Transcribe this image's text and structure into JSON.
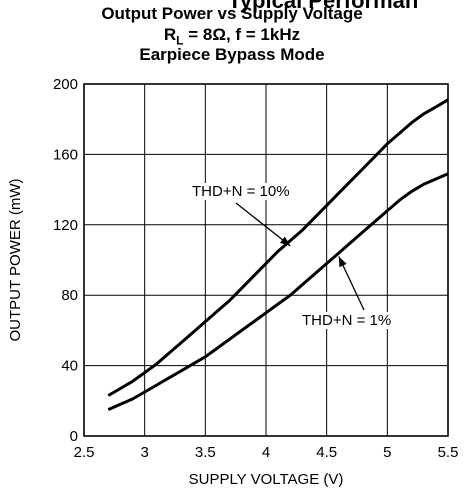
{
  "header": {
    "page_title": "Typical Performan",
    "chart_title_line1": "Output Power vs Supply Voltage",
    "chart_title_line2": "RL = 8Ω, f = 1kHz",
    "chart_title_line2_parts": {
      "r": "R",
      "sub": "L",
      "rest": " = 8Ω, f = 1kHz"
    },
    "chart_title_line3": "Earpiece Bypass Mode"
  },
  "chart_data": {
    "type": "line",
    "title": "Output Power vs Supply Voltage",
    "xlabel": "SUPPLY VOLTAGE (V)",
    "ylabel": "OUTPUT POWER (mW)",
    "xlim": [
      2.5,
      5.5
    ],
    "ylim": [
      0,
      200
    ],
    "xticks": [
      2.5,
      3,
      3.5,
      4,
      4.5,
      5,
      5.5
    ],
    "xtick_labels": [
      "2.5",
      "3",
      "3.5",
      "4",
      "4.5",
      "5",
      "5.5"
    ],
    "yticks": [
      0,
      40,
      80,
      120,
      160,
      200
    ],
    "ytick_labels": [
      "0",
      "40",
      "80",
      "120",
      "160",
      "200"
    ],
    "grid": true,
    "series": [
      {
        "name": "THD+N = 10%",
        "x": [
          2.7,
          2.8,
          2.9,
          3.0,
          3.1,
          3.2,
          3.3,
          3.4,
          3.5,
          3.6,
          3.7,
          3.8,
          3.9,
          4.0,
          4.1,
          4.2,
          4.3,
          4.4,
          4.5,
          4.6,
          4.7,
          4.8,
          4.9,
          5.0,
          5.1,
          5.2,
          5.3,
          5.4,
          5.5
        ],
        "y": [
          23,
          27,
          31,
          36,
          41,
          47,
          53,
          59,
          65,
          71,
          77,
          84,
          91,
          98,
          105,
          111,
          117,
          124,
          131,
          138,
          145,
          152,
          159,
          166,
          172,
          178,
          183,
          187,
          191
        ]
      },
      {
        "name": "THD+N = 1%",
        "x": [
          2.7,
          2.8,
          2.9,
          3.0,
          3.1,
          3.2,
          3.3,
          3.4,
          3.5,
          3.6,
          3.7,
          3.8,
          3.9,
          4.0,
          4.1,
          4.2,
          4.3,
          4.4,
          4.5,
          4.6,
          4.7,
          4.8,
          4.9,
          5.0,
          5.1,
          5.2,
          5.3,
          5.4,
          5.5
        ],
        "y": [
          15,
          18,
          21,
          25,
          29,
          33,
          37,
          41,
          45,
          50,
          55,
          60,
          65,
          70,
          75,
          80,
          86,
          92,
          98,
          104,
          110,
          116,
          122,
          128,
          134,
          139,
          143,
          146,
          149
        ]
      }
    ],
    "annotations": [
      {
        "text": "THD+N = 10%",
        "series": 0,
        "arrow_to": [
          4.2,
          108
        ]
      },
      {
        "text": "THD+N = 1%",
        "series": 1,
        "arrow_to": [
          4.6,
          102
        ]
      }
    ]
  }
}
